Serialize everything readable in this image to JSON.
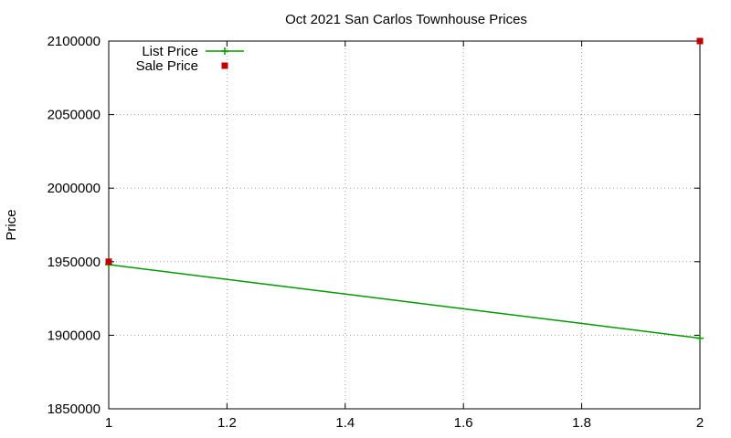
{
  "chart_data": {
    "type": "line",
    "title": "Oct 2021 San Carlos Townhouse Prices",
    "xlabel": "",
    "ylabel": "Price",
    "xlim": [
      1,
      2
    ],
    "ylim": [
      1850000,
      2100000
    ],
    "xticks": [
      "1",
      "1.2",
      "1.4",
      "1.6",
      "1.8",
      "2"
    ],
    "xtick_values": [
      1,
      1.2,
      1.4,
      1.6,
      1.8,
      2
    ],
    "yticks": [
      "1850000",
      "1900000",
      "1950000",
      "2000000",
      "2050000",
      "2100000"
    ],
    "ytick_values": [
      1850000,
      1900000,
      1950000,
      2000000,
      2050000,
      2100000
    ],
    "grid": true,
    "legend_position": "top-left",
    "series": [
      {
        "name": "List Price",
        "style": "line-with-plus",
        "color": "#009900",
        "x": [
          1,
          2
        ],
        "y": [
          1948000,
          1898000
        ]
      },
      {
        "name": "Sale Price",
        "style": "square-markers",
        "color": "#c00000",
        "x": [
          1,
          2
        ],
        "y": [
          1950000,
          2100000
        ]
      }
    ]
  }
}
